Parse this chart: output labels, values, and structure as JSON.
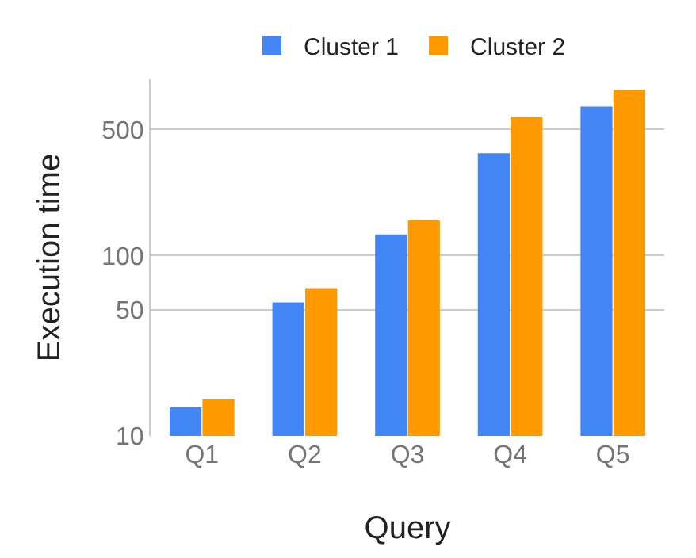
{
  "chart_data": {
    "type": "bar",
    "xlabel": "Query",
    "ylabel": "Execution time",
    "categories": [
      "Q1",
      "Q2",
      "Q3",
      "Q4",
      "Q5"
    ],
    "series": [
      {
        "name": "Cluster 1",
        "color": "#4285f4",
        "values": [
          14.4,
          55,
          131,
          370,
          670
        ]
      },
      {
        "name": "Cluster 2",
        "color": "#ff9900",
        "values": [
          16,
          66,
          157,
          590,
          830
        ]
      }
    ],
    "log": "y",
    "ylim": [
      10,
      950
    ],
    "yticks": [
      10,
      50,
      100,
      500
    ],
    "grid": "y",
    "legend": "top"
  }
}
